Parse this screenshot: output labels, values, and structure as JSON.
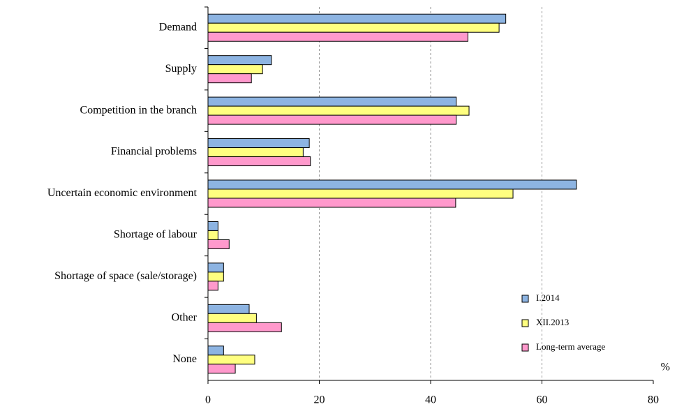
{
  "chart_data": {
    "type": "hbar",
    "categories": [
      "Demand",
      "Supply",
      "Competition in the branch",
      "Financial problems",
      "Uncertain economic environment",
      "Shortage of labour",
      "Shortage of space (sale/storage)",
      "Other",
      "None"
    ],
    "series": [
      {
        "name": "I.2014",
        "color": "#8db4e2",
        "values": [
          53.5,
          11.4,
          44.6,
          18.2,
          66.2,
          1.8,
          2.8,
          7.4,
          2.8
        ]
      },
      {
        "name": "XII.2013",
        "color": "#ffff80",
        "values": [
          52.3,
          9.8,
          46.9,
          17.1,
          54.8,
          1.8,
          2.8,
          8.7,
          8.4
        ]
      },
      {
        "name": "Long-term average",
        "color": "#ff99cc",
        "values": [
          46.7,
          7.8,
          44.6,
          18.4,
          44.5,
          3.8,
          1.8,
          13.2,
          4.9
        ]
      }
    ],
    "xlabel": "%",
    "xlim": [
      0,
      80
    ],
    "xticks": [
      0,
      20,
      40,
      60,
      80
    ],
    "grid": true,
    "legend": "lower right"
  }
}
